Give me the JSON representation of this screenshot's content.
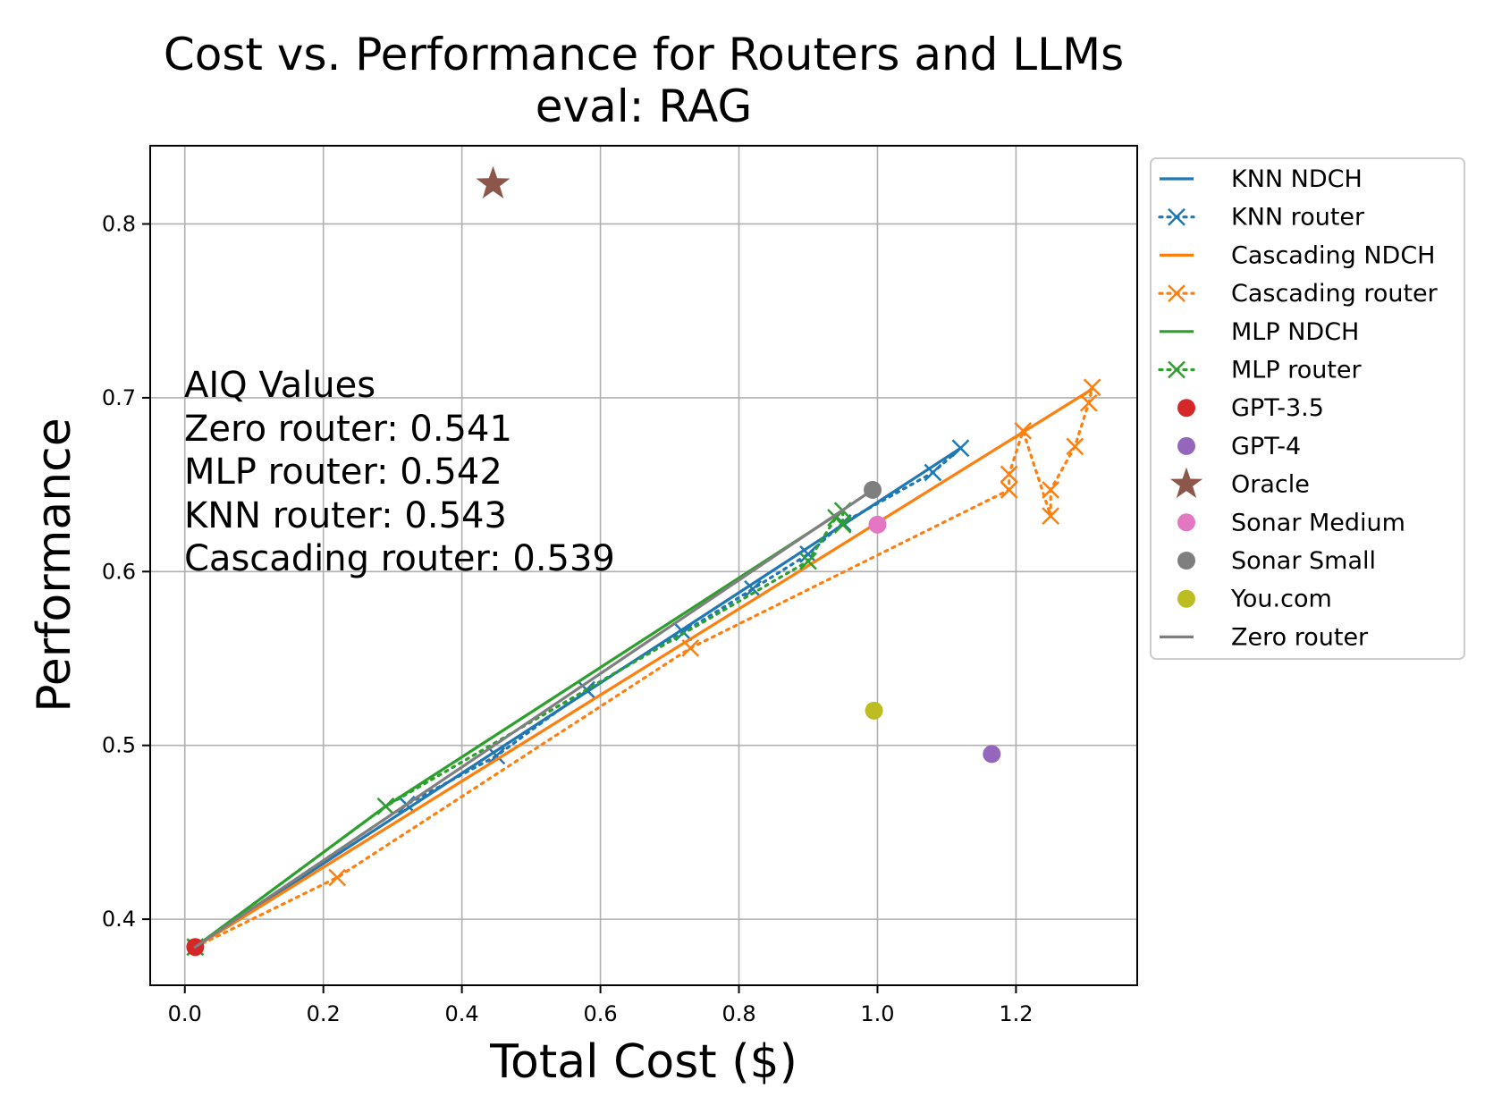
{
  "chart_data": {
    "type": "line",
    "title": "Cost vs. Performance for Routers and LLMs",
    "subtitle": "eval: RAG",
    "xlabel": "Total Cost ($)",
    "ylabel": "Performance",
    "xlim": [
      -0.05,
      1.375
    ],
    "ylim": [
      0.362,
      0.845
    ],
    "xticks": [
      0.0,
      0.2,
      0.4,
      0.6,
      0.8,
      1.0,
      1.2
    ],
    "xtick_labels": [
      "0.0",
      "0.2",
      "0.4",
      "0.6",
      "0.8",
      "1.0",
      "1.2"
    ],
    "yticks": [
      0.4,
      0.5,
      0.6,
      0.7,
      0.8
    ],
    "ytick_labels": [
      "0.4",
      "0.5",
      "0.6",
      "0.7",
      "0.8"
    ],
    "grid": true,
    "legend_position": "outside-right",
    "annotation": {
      "title": "AIQ Values",
      "lines": [
        "Zero router: 0.541",
        "MLP router: 0.542",
        "KNN router: 0.543",
        "Cascading router: 0.539"
      ]
    },
    "colors": {
      "blue": "#1f77b4",
      "orange": "#ff7f0e",
      "green": "#2ca02c",
      "red": "#d62728",
      "purple": "#9467bd",
      "brown": "#8c564b",
      "pink": "#e377c2",
      "gray": "#7f7f7f",
      "olive": "#bcbd22"
    },
    "series": [
      {
        "name": "KNN NDCH",
        "kind": "line",
        "color": "#1f77b4",
        "x": [
          0.015,
          1.12
        ],
        "y": [
          0.384,
          0.671
        ]
      },
      {
        "name": "KNN router",
        "kind": "dotted-x",
        "color": "#1f77b4",
        "x": [
          0.015,
          0.32,
          0.45,
          0.58,
          0.72,
          0.82,
          0.9,
          0.95,
          1.08,
          1.12
        ],
        "y": [
          0.384,
          0.466,
          0.494,
          0.532,
          0.565,
          0.59,
          0.61,
          0.628,
          0.657,
          0.671
        ]
      },
      {
        "name": "Cascading NDCH",
        "kind": "line",
        "color": "#ff7f0e",
        "x": [
          0.015,
          1.31
        ],
        "y": [
          0.384,
          0.705
        ]
      },
      {
        "name": "Cascading router",
        "kind": "dotted-x",
        "color": "#ff7f0e",
        "x": [
          0.015,
          0.22,
          0.73,
          1.19,
          1.19,
          1.21,
          1.25,
          1.25,
          1.285,
          1.305,
          1.31
        ],
        "y": [
          0.384,
          0.424,
          0.556,
          0.647,
          0.656,
          0.681,
          0.632,
          0.647,
          0.672,
          0.697,
          0.706
        ]
      },
      {
        "name": "MLP NDCH",
        "kind": "line",
        "color": "#2ca02c",
        "x": [
          0.015,
          0.29,
          0.95
        ],
        "y": [
          0.384,
          0.465,
          0.635
        ]
      },
      {
        "name": "MLP router",
        "kind": "dotted-x",
        "color": "#2ca02c",
        "x": [
          0.015,
          0.29,
          0.9,
          0.94,
          0.95,
          0.95
        ],
        "y": [
          0.384,
          0.465,
          0.606,
          0.631,
          0.627,
          0.635
        ]
      },
      {
        "name": "GPT-3.5",
        "kind": "point",
        "color": "#d62728",
        "x": [
          0.015
        ],
        "y": [
          0.384
        ]
      },
      {
        "name": "GPT-4",
        "kind": "point",
        "color": "#9467bd",
        "x": [
          1.165
        ],
        "y": [
          0.495
        ]
      },
      {
        "name": "Oracle",
        "kind": "star",
        "color": "#8c564b",
        "x": [
          0.445
        ],
        "y": [
          0.823
        ]
      },
      {
        "name": "Sonar Medium",
        "kind": "point",
        "color": "#e377c2",
        "x": [
          1.0
        ],
        "y": [
          0.627
        ]
      },
      {
        "name": "Sonar Small",
        "kind": "point",
        "color": "#7f7f7f",
        "x": [
          0.993
        ],
        "y": [
          0.647
        ]
      },
      {
        "name": "You.com",
        "kind": "point",
        "color": "#bcbd22",
        "x": [
          0.995
        ],
        "y": [
          0.52
        ]
      },
      {
        "name": "Zero router",
        "kind": "line",
        "color": "#7f7f7f",
        "x": [
          0.015,
          0.993
        ],
        "y": [
          0.384,
          0.647
        ]
      }
    ]
  }
}
